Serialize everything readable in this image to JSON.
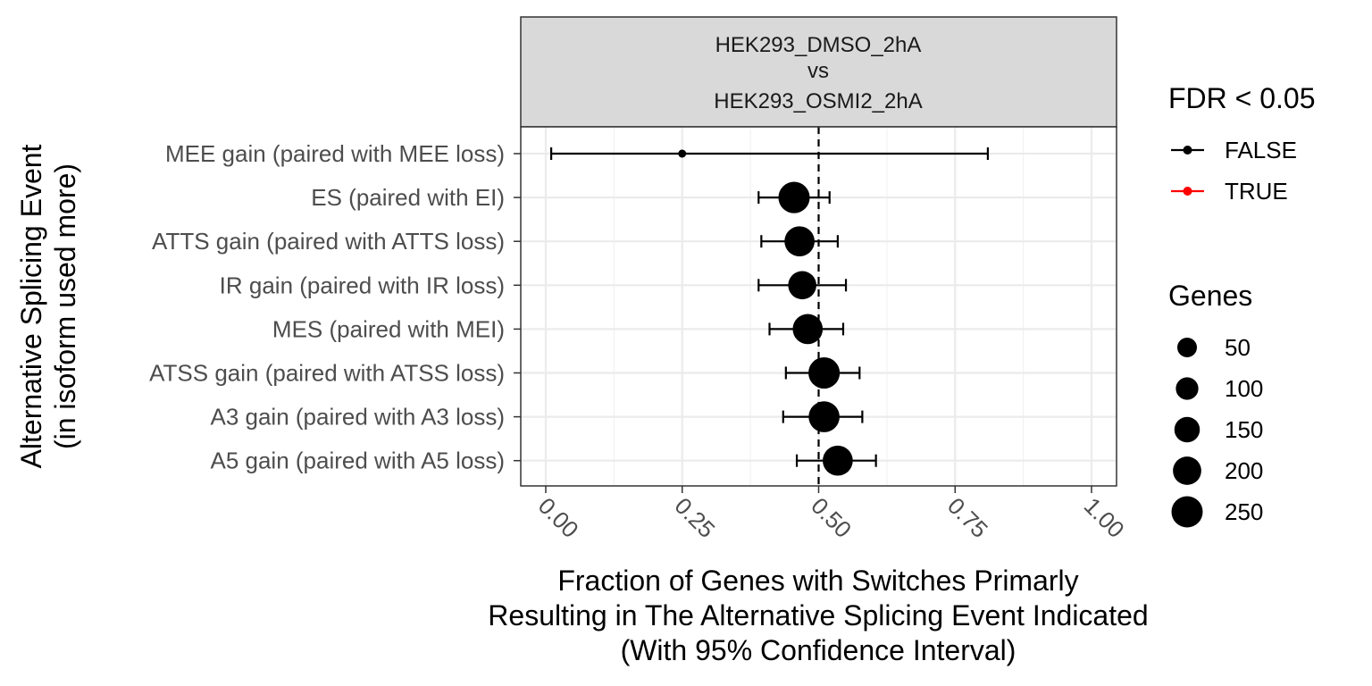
{
  "chart_data": {
    "type": "scatter",
    "facet_label": [
      "HEK293_DMSO_2hA",
      "vs",
      "HEK293_OSMI2_2hA"
    ],
    "xlabel": [
      "Fraction of Genes with Switches Primarly",
      "Resulting in The Alternative Splicing Event Indicated",
      "(With 95% Confidence Interval)"
    ],
    "ylabel": [
      "Alternative Splicing Event",
      "(in isoform used more)"
    ],
    "xlim": [
      0,
      1
    ],
    "xticks": [
      0,
      0.25,
      0.5,
      0.75,
      1
    ],
    "xtick_labels": [
      "0.00",
      "0.25",
      "0.50",
      "0.75",
      "1.00"
    ],
    "reference_line": 0.5,
    "grid": true,
    "categories": [
      "MEE gain (paired with MEE loss)",
      "ES (paired with EI)",
      "ATTS gain (paired with ATTS loss)",
      "IR gain (paired with IR loss)",
      "MES (paired with MEI)",
      "ATSS gain (paired with ATSS loss)",
      "A3 gain (paired with A3 loss)",
      "A5 gain (paired with A5 loss)"
    ],
    "points": [
      {
        "category": "MEE gain (paired with MEE loss)",
        "x": 0.25,
        "ci_low": 0.01,
        "ci_high": 0.81,
        "genes": 4,
        "fdr_sig": "FALSE"
      },
      {
        "category": "ES (paired with EI)",
        "x": 0.455,
        "ci_low": 0.39,
        "ci_high": 0.52,
        "genes": 230,
        "fdr_sig": "FALSE"
      },
      {
        "category": "ATTS gain (paired with ATTS loss)",
        "x": 0.465,
        "ci_low": 0.395,
        "ci_high": 0.535,
        "genes": 200,
        "fdr_sig": "FALSE"
      },
      {
        "category": "IR gain (paired with IR loss)",
        "x": 0.47,
        "ci_low": 0.39,
        "ci_high": 0.55,
        "genes": 160,
        "fdr_sig": "FALSE"
      },
      {
        "category": "MES (paired with MEI)",
        "x": 0.48,
        "ci_low": 0.41,
        "ci_high": 0.545,
        "genes": 200,
        "fdr_sig": "FALSE"
      },
      {
        "category": "ATSS gain (paired with ATSS loss)",
        "x": 0.51,
        "ci_low": 0.44,
        "ci_high": 0.575,
        "genes": 230,
        "fdr_sig": "FALSE"
      },
      {
        "category": "A3 gain (paired with A3 loss)",
        "x": 0.51,
        "ci_low": 0.435,
        "ci_high": 0.58,
        "genes": 220,
        "fdr_sig": "FALSE"
      },
      {
        "category": "A5 gain (paired with A5 loss)",
        "x": 0.535,
        "ci_low": 0.46,
        "ci_high": 0.605,
        "genes": 200,
        "fdr_sig": "FALSE"
      }
    ],
    "legend_fdr": {
      "title": "FDR < 0.05",
      "entries": [
        {
          "label": "FALSE",
          "color": "#000000"
        },
        {
          "label": "TRUE",
          "color": "#ff0000"
        }
      ]
    },
    "legend_genes": {
      "title": "Genes",
      "entries": [
        {
          "label": "50",
          "value": 50
        },
        {
          "label": "100",
          "value": 100
        },
        {
          "label": "150",
          "value": 150
        },
        {
          "label": "200",
          "value": 200
        },
        {
          "label": "250",
          "value": 250
        }
      ]
    }
  }
}
